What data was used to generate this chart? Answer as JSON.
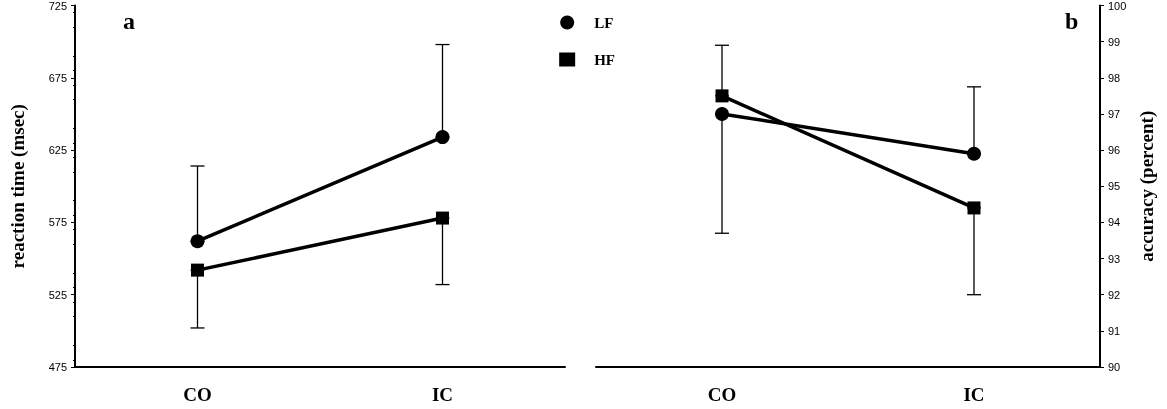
{
  "chart_data": [
    {
      "type": "line",
      "title": "a",
      "ylabel": "reaction time (msec)",
      "categories": [
        "CO",
        "IC"
      ],
      "ylim": [
        475,
        725
      ],
      "yticks": [
        475,
        525,
        575,
        625,
        675,
        725
      ],
      "legend": "top right",
      "grid": false,
      "line_style": "solid",
      "series": [
        {
          "name": "LF",
          "color": "#000000",
          "marker": "circle",
          "values": [
            562,
            634
          ],
          "errors": [
            [
              562,
              614
            ],
            [
              634,
              698
            ]
          ]
        },
        {
          "name": "HF",
          "color": "#000000",
          "marker": "square",
          "values": [
            542,
            578
          ],
          "errors": [
            [
              502,
              542
            ],
            [
              532,
              578
            ]
          ]
        }
      ]
    },
    {
      "type": "line",
      "title": "b",
      "y2label": "accuracy (percent)",
      "categories": [
        "CO",
        "IC"
      ],
      "y2lim": [
        90,
        100
      ],
      "y2ticks": [
        90,
        91,
        92,
        93,
        94,
        95,
        96,
        97,
        98,
        99,
        100
      ],
      "grid": false,
      "line_style": "solid",
      "series": [
        {
          "color": "#000000",
          "marker": "circle",
          "axis": "y2",
          "values": [
            97.0,
            95.9
          ],
          "errors": [
            [
              93.7,
              97.0
            ],
            [
              95.9,
              97.75
            ]
          ]
        },
        {
          "color": "#000000",
          "marker": "square",
          "axis": "y2",
          "values": [
            97.5,
            94.4
          ],
          "errors": [
            [
              97.5,
              98.9
            ],
            [
              92.0,
              94.4
            ]
          ]
        }
      ]
    }
  ]
}
